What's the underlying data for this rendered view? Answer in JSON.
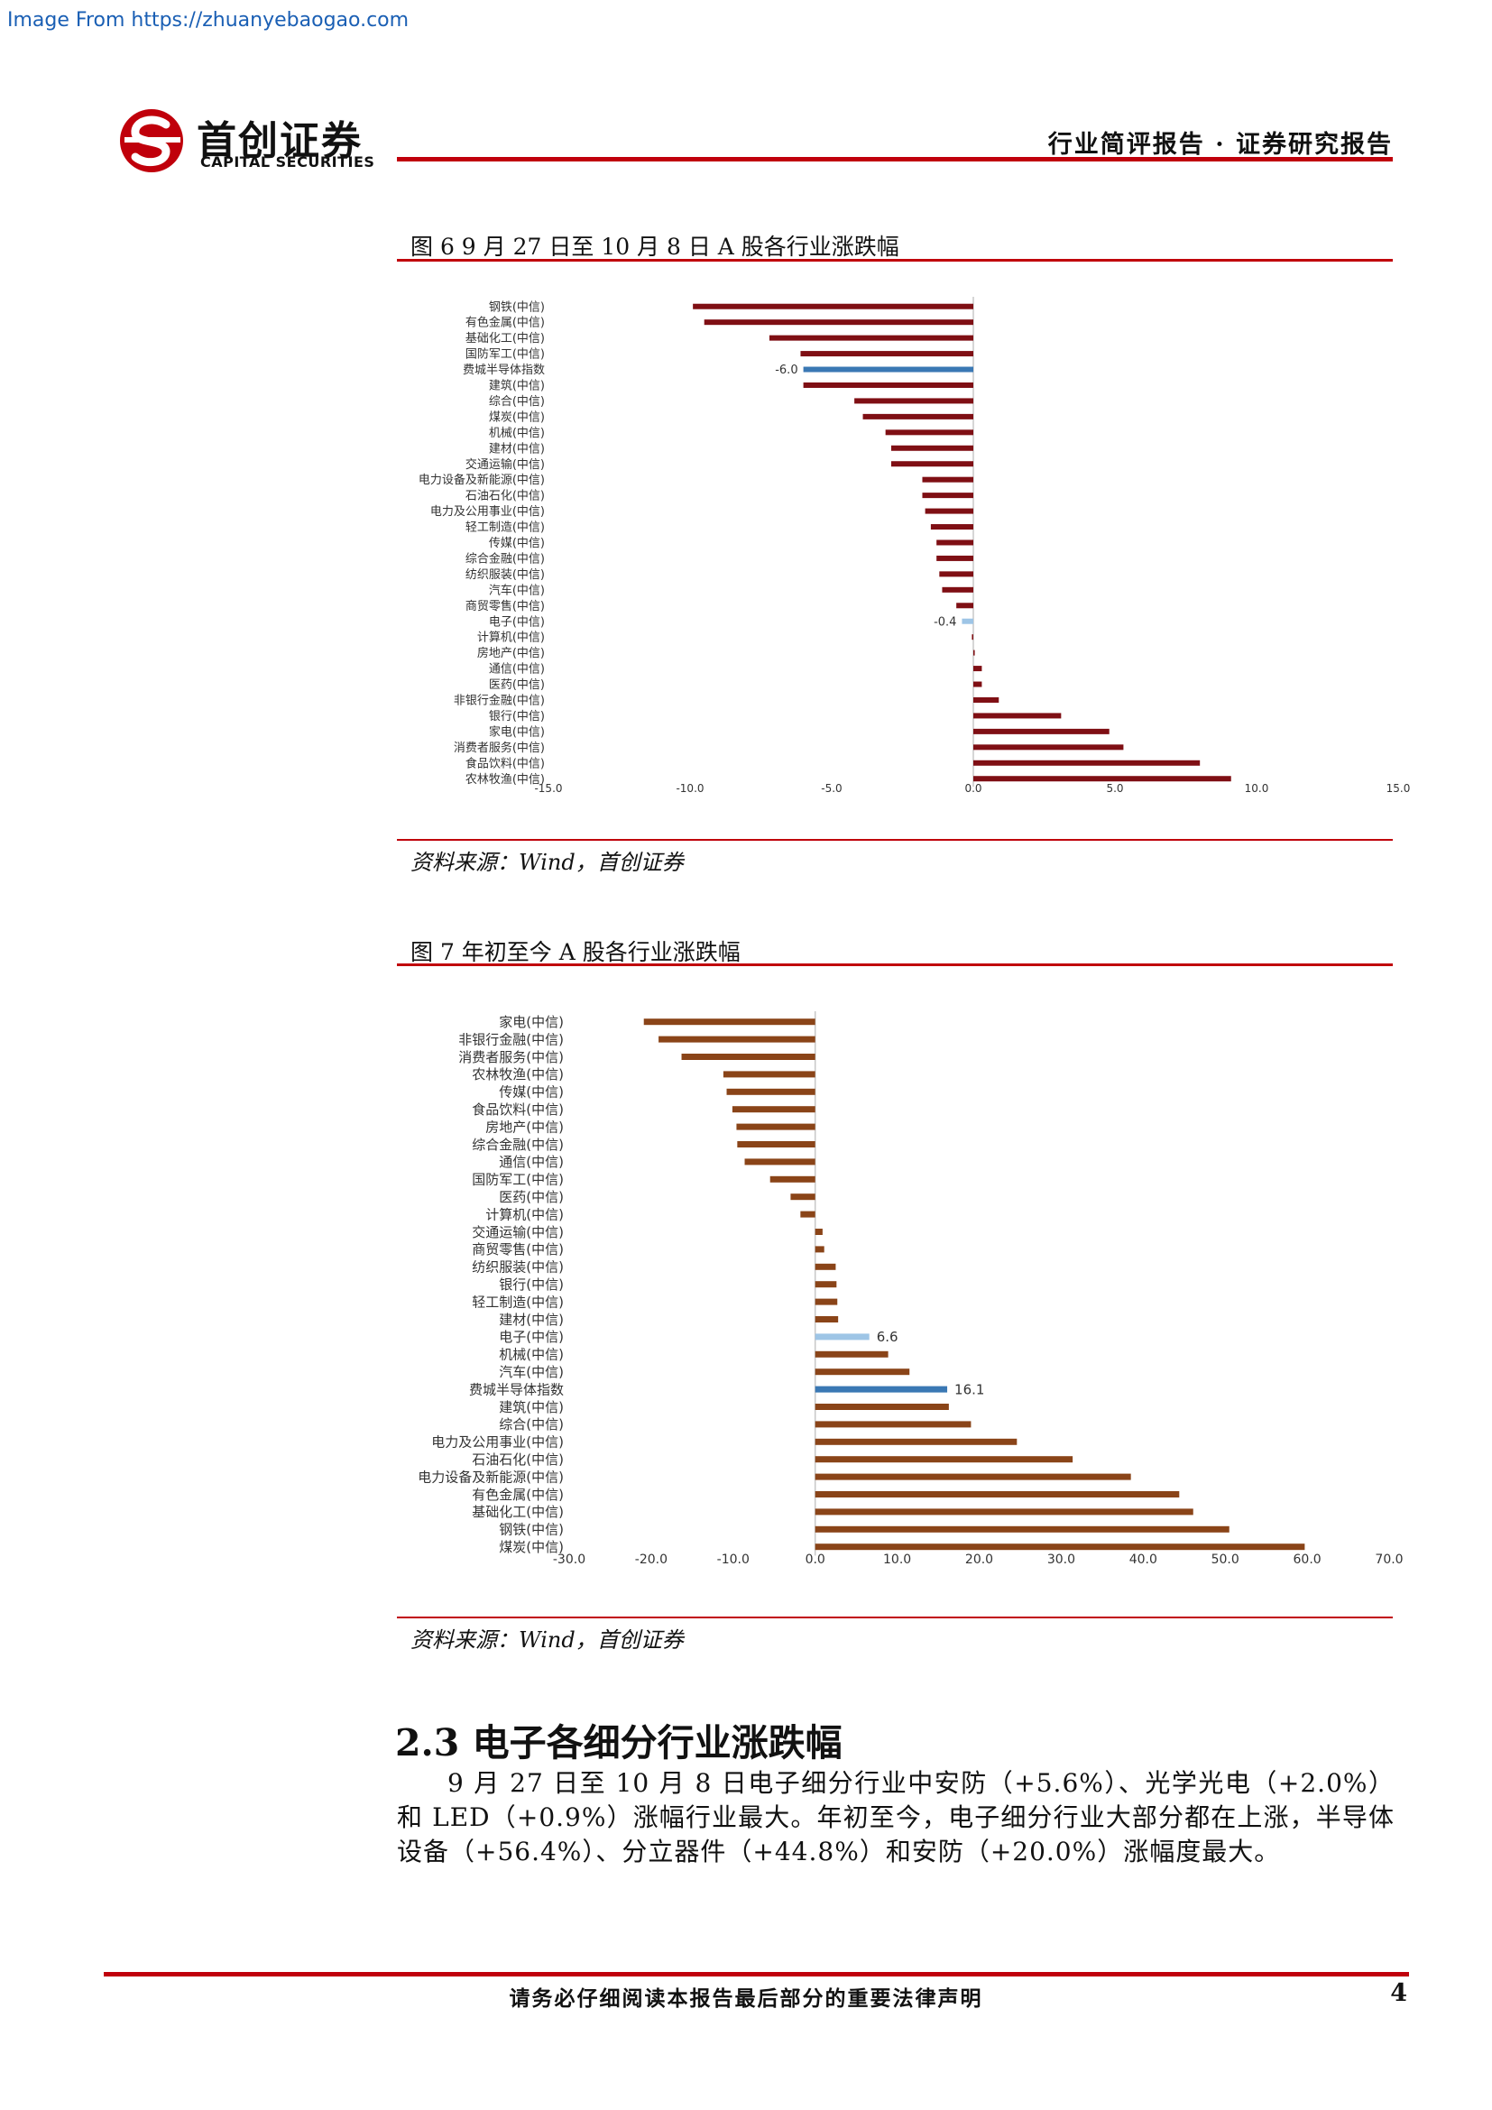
{
  "watermark": "Image From https://zhuanyebaogao.com",
  "logo": {
    "cn": "首创证券",
    "en": "CAPITAL SECURITIES"
  },
  "header": {
    "right": "行业简评报告 · 证券研究报告"
  },
  "colors": {
    "accent": "#c0000b",
    "fig6_bar": "#7f0f14",
    "fig7_bar": "#8a4418",
    "highlight": "#3a78b4",
    "highlight_light": "#9ec5e6"
  },
  "figures": [
    {
      "title": "图 6 9 月 27 日至 10 月 8 日 A 股各行业涨跌幅",
      "source": "资料来源：Wind，首创证券"
    },
    {
      "title": "图 7 年初至今 A 股各行业涨跌幅",
      "source": "资料来源：Wind，首创证券"
    }
  ],
  "chart_data": [
    {
      "type": "bar",
      "orientation": "horizontal",
      "categories": [
        "钢铁(中信)",
        "有色金属(中信)",
        "基础化工(中信)",
        "国防军工(中信)",
        "费城半导体指数",
        "建筑(中信)",
        "综合(中信)",
        "煤炭(中信)",
        "机械(中信)",
        "建材(中信)",
        "交通运输(中信)",
        "电力设备及新能源(中信)",
        "石油石化(中信)",
        "电力及公用事业(中信)",
        "轻工制造(中信)",
        "传媒(中信)",
        "综合金融(中信)",
        "纺织服装(中信)",
        "汽车(中信)",
        "商贸零售(中信)",
        "电子(中信)",
        "计算机(中信)",
        "房地产(中信)",
        "通信(中信)",
        "医药(中信)",
        "非银行金融(中信)",
        "银行(中信)",
        "家电(中信)",
        "消费者服务(中信)",
        "食品饮料(中信)",
        "农林牧渔(中信)"
      ],
      "values": [
        -9.9,
        -9.5,
        -7.2,
        -6.1,
        -6.0,
        -6.0,
        -4.2,
        -3.9,
        -3.1,
        -2.9,
        -2.9,
        -1.8,
        -1.8,
        -1.7,
        -1.5,
        -1.3,
        -1.3,
        -1.2,
        -1.1,
        -0.6,
        -0.4,
        -0.05,
        0.05,
        0.3,
        0.3,
        0.9,
        3.1,
        4.8,
        5.3,
        8.0,
        9.1
      ],
      "data_labels": [
        {
          "category": "费城半导体指数",
          "text": "-6.0"
        },
        {
          "category": "电子(中信)",
          "text": "-0.4"
        }
      ],
      "xticks": [
        "-15.0",
        "-10.0",
        "-5.0",
        "0.0",
        "5.0",
        "10.0",
        "15.0"
      ],
      "xlim": [
        -15,
        15
      ]
    },
    {
      "type": "bar",
      "orientation": "horizontal",
      "categories": [
        "家电(中信)",
        "非银行金融(中信)",
        "消费者服务(中信)",
        "农林牧渔(中信)",
        "传媒(中信)",
        "食品饮料(中信)",
        "房地产(中信)",
        "综合金融(中信)",
        "通信(中信)",
        "国防军工(中信)",
        "医药(中信)",
        "计算机(中信)",
        "交通运输(中信)",
        "商贸零售(中信)",
        "纺织服装(中信)",
        "银行(中信)",
        "轻工制造(中信)",
        "建材(中信)",
        "电子(中信)",
        "机械(中信)",
        "汽车(中信)",
        "费城半导体指数",
        "建筑(中信)",
        "综合(中信)",
        "电力及公用事业(中信)",
        "石油石化(中信)",
        "电力设备及新能源(中信)",
        "有色金属(中信)",
        "基础化工(中信)",
        "钢铁(中信)",
        "煤炭(中信)"
      ],
      "values": [
        -20.9,
        -19.1,
        -16.3,
        -11.2,
        -10.8,
        -10.1,
        -9.6,
        -9.5,
        -8.6,
        -5.5,
        -3.0,
        -1.8,
        0.9,
        1.1,
        2.5,
        2.6,
        2.7,
        2.8,
        6.6,
        8.9,
        11.5,
        16.1,
        16.3,
        19.0,
        24.6,
        31.4,
        38.5,
        44.4,
        46.1,
        50.5,
        59.7
      ],
      "data_labels": [
        {
          "category": "电子(中信)",
          "text": "6.6"
        },
        {
          "category": "费城半导体指数",
          "text": "16.1"
        }
      ],
      "xticks": [
        "-30.0",
        "-20.0",
        "-10.0",
        "0.0",
        "10.0",
        "20.0",
        "30.0",
        "40.0",
        "50.0",
        "60.0",
        "70.0"
      ],
      "xlim": [
        -30,
        70
      ]
    }
  ],
  "section": {
    "heading": "2.3 电子各细分行业涨跌幅",
    "paragraph": "9 月 27 日至 10 月 8 日电子细分行业中安防（+5.6%）、光学光电（+2.0%）和 LED（+0.9%）涨幅行业最大。年初至今，电子细分行业大部分都在上涨，半导体设备（+56.4%）、分立器件（+44.8%）和安防（+20.0%）涨幅度最大。"
  },
  "footer": {
    "text": "请务必仔细阅读本报告最后部分的重要法律声明",
    "page": "4"
  }
}
